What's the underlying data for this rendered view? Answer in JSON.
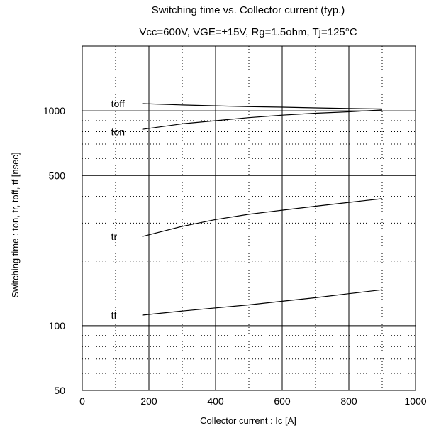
{
  "chart_data": {
    "type": "line",
    "title": "Switching time vs. Collector current (typ.)",
    "subtitle": "Vcc=600V, VGE=±15V, Rg=1.5ohm, Tj=125°C",
    "xlabel": "Collector current : Ic [A]",
    "ylabel": "Switching time : ton, tr, toff, tf [nsec]",
    "xlim": [
      0,
      1000
    ],
    "ylim": [
      50,
      2000
    ],
    "yscale": "log",
    "grid": true,
    "x_ticks": [
      0,
      200,
      400,
      600,
      800,
      1000
    ],
    "x_tick_labels": [
      "0",
      "200",
      "400",
      "600",
      "800",
      "1000"
    ],
    "y_tick_labels": [
      {
        "value": 1000,
        "label": "1000"
      },
      {
        "value": 500,
        "label": "500"
      },
      {
        "value": 100,
        "label": "100"
      },
      {
        "value": 50,
        "label": "50"
      }
    ],
    "series": [
      {
        "name": "toff",
        "label_at": [
          80,
          1080
        ],
        "x": [
          180,
          300,
          400,
          500,
          600,
          700,
          800,
          900
        ],
        "values": [
          1080,
          1065,
          1055,
          1045,
          1040,
          1032,
          1025,
          1020
        ]
      },
      {
        "name": "ton",
        "label_at": [
          80,
          800
        ],
        "x": [
          180,
          300,
          400,
          500,
          600,
          700,
          800,
          900
        ],
        "values": [
          820,
          870,
          900,
          930,
          955,
          975,
          990,
          1010
        ]
      },
      {
        "name": "tr",
        "label_at": [
          80,
          260
        ],
        "x": [
          180,
          300,
          400,
          500,
          600,
          700,
          800,
          900
        ],
        "values": [
          260,
          290,
          312,
          330,
          345,
          360,
          375,
          390
        ]
      },
      {
        "name": "tf",
        "label_at": [
          80,
          112
        ],
        "x": [
          180,
          300,
          400,
          500,
          600,
          700,
          800,
          900
        ],
        "values": [
          112,
          117,
          121,
          125,
          130,
          135,
          141,
          147
        ]
      }
    ]
  }
}
